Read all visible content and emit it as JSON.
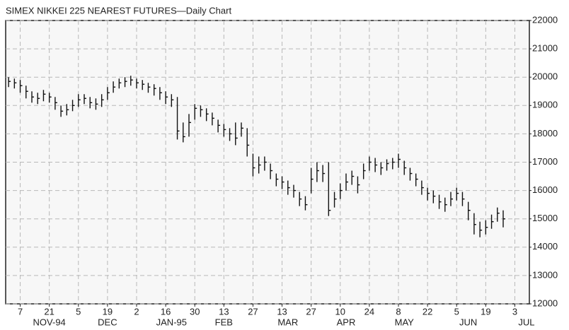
{
  "chart_data": {
    "type": "ohlc",
    "title": "SIMEX NIKKEI 225 NEAREST FUTURES—Daily Chart",
    "categories": [
      null,
      null,
      "7",
      null,
      null,
      null,
      null,
      "21",
      null,
      null,
      null,
      null,
      "5",
      null,
      null,
      null,
      null,
      "19",
      null,
      null,
      null,
      null,
      "2",
      null,
      null,
      null,
      null,
      "16",
      null,
      null,
      null,
      null,
      "30",
      null,
      null,
      null,
      null,
      "13",
      null,
      null,
      null,
      null,
      "27",
      null,
      null,
      null,
      null,
      "13",
      null,
      null,
      null,
      null,
      "27",
      null,
      null,
      null,
      null,
      "10",
      null,
      null,
      null,
      null,
      "24",
      null,
      null,
      null,
      null,
      "8",
      null,
      null,
      null,
      null,
      "22",
      null,
      null,
      null,
      null,
      "5",
      null,
      null,
      null,
      null,
      "19",
      null,
      null,
      null,
      null,
      "3",
      null,
      null
    ],
    "months": [
      null,
      null,
      null,
      null,
      null,
      null,
      null,
      "NOV-94",
      null,
      null,
      null,
      null,
      null,
      null,
      null,
      null,
      null,
      "DEC",
      null,
      null,
      null,
      null,
      null,
      null,
      null,
      null,
      null,
      null,
      "JAN-95",
      null,
      null,
      null,
      null,
      null,
      null,
      null,
      null,
      "FEB",
      null,
      null,
      null,
      null,
      null,
      null,
      null,
      null,
      null,
      null,
      "MAR",
      null,
      null,
      null,
      null,
      null,
      null,
      null,
      null,
      null,
      "APR",
      null,
      null,
      null,
      null,
      null,
      null,
      null,
      null,
      null,
      "MAY",
      null,
      null,
      null,
      null,
      null,
      null,
      null,
      null,
      null,
      null,
      "JUN",
      null,
      null,
      null,
      null,
      null,
      null,
      null,
      null,
      null,
      "JUL"
    ],
    "high": [
      20000,
      19950,
      19900,
      19700,
      19500,
      19450,
      19550,
      19450,
      19300,
      19000,
      19050,
      19200,
      19400,
      19400,
      19300,
      19250,
      19400,
      19650,
      19850,
      19950,
      20000,
      20050,
      19950,
      19900,
      19800,
      19750,
      19650,
      19500,
      19400,
      19300,
      18400,
      18700,
      19050,
      19000,
      18900,
      18750,
      18500,
      18350,
      18200,
      18400,
      18400,
      18200,
      17300,
      17200,
      17200,
      16950,
      16600,
      16500,
      16350,
      16200,
      15950,
      15800,
      16800,
      17000,
      16900,
      17000,
      15950,
      16250,
      16600,
      16700,
      16500,
      16950,
      17200,
      17150,
      17000,
      17100,
      17150,
      17300,
      17050,
      16800,
      16600,
      16350,
      16100,
      16000,
      15850,
      15750,
      15950,
      16100,
      15950,
      15600,
      15200,
      14900,
      14950,
      15150,
      15400,
      15300,
      null,
      null,
      null,
      null
    ],
    "low": [
      19650,
      19600,
      19450,
      19250,
      19100,
      19050,
      19150,
      19100,
      18850,
      18600,
      18650,
      18800,
      18950,
      19050,
      18900,
      18850,
      18950,
      19200,
      19450,
      19600,
      19650,
      19700,
      19600,
      19550,
      19450,
      19350,
      19200,
      19050,
      18950,
      17800,
      17700,
      17900,
      18500,
      18600,
      18450,
      18300,
      18050,
      17900,
      17750,
      17600,
      17900,
      17200,
      16500,
      16600,
      16700,
      16400,
      16150,
      16050,
      15850,
      15750,
      15450,
      15300,
      15900,
      16300,
      16300,
      15100,
      15400,
      15700,
      16000,
      16200,
      15900,
      16400,
      16700,
      16650,
      16550,
      16700,
      16750,
      16800,
      16550,
      16350,
      16150,
      15850,
      15650,
      15550,
      15350,
      15250,
      15450,
      15650,
      15450,
      14950,
      14450,
      14350,
      14450,
      14650,
      14900,
      14700,
      null,
      null,
      null,
      null
    ],
    "close": [
      19850,
      19800,
      19700,
      19500,
      19300,
      19250,
      19400,
      19300,
      19100,
      18800,
      18850,
      19000,
      19200,
      19250,
      19100,
      19050,
      19200,
      19450,
      19650,
      19800,
      19850,
      19900,
      19800,
      19750,
      19650,
      19600,
      19450,
      19300,
      19200,
      18100,
      17900,
      18400,
      18900,
      18850,
      18700,
      18550,
      18300,
      18150,
      18000,
      17850,
      18200,
      17600,
      16800,
      16900,
      17000,
      16700,
      16400,
      16300,
      16100,
      16000,
      15700,
      15500,
      16400,
      16700,
      16600,
      15300,
      15700,
      16000,
      16300,
      16500,
      16200,
      16700,
      17000,
      16900,
      16800,
      16950,
      17000,
      17100,
      16800,
      16600,
      16400,
      16100,
      15900,
      15800,
      15600,
      15500,
      15700,
      15900,
      15700,
      15300,
      14800,
      14600,
      14700,
      14900,
      15200,
      15000,
      null,
      null,
      null,
      null
    ],
    "color": "#111111",
    "ylim": [
      12000,
      22000
    ],
    "yticks": [
      12000,
      13000,
      14000,
      15000,
      16000,
      17000,
      18000,
      19000,
      20000,
      21000,
      22000
    ],
    "grid": true
  }
}
